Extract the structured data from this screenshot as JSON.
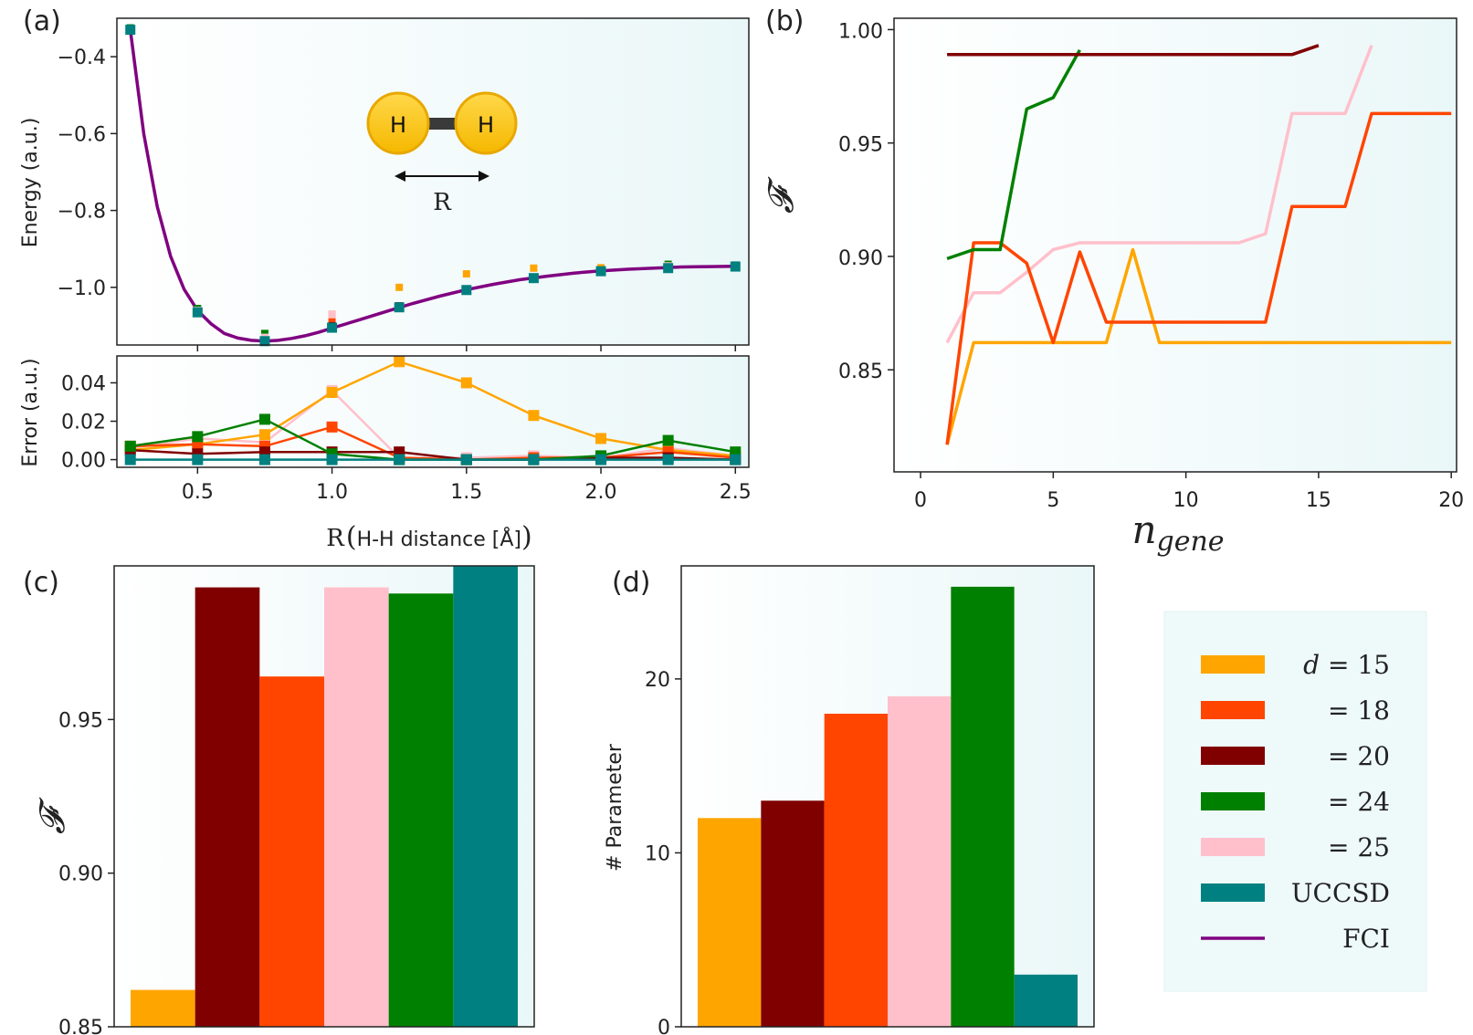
{
  "colors": {
    "d15": "#FFA500",
    "d18": "#FF4500",
    "d20": "#800000",
    "d24": "#008000",
    "d25": "#FFC0CB",
    "uccsd": "#008080",
    "fci": "#800080",
    "panel_bg": "#EEF9FA"
  },
  "panel_labels": {
    "a": "(a)",
    "b": "(b)",
    "c": "(c)",
    "d": "(d)"
  },
  "molecule": {
    "atom1": "H",
    "atom2": "H",
    "bond_label": "R"
  },
  "chart_data": [
    {
      "id": "a-energy",
      "type": "line",
      "ylabel": "Energy (a.u.)",
      "ylim": [
        -1.15,
        -0.3
      ],
      "xlim": [
        0.2,
        2.55
      ],
      "yticks": [
        -0.4,
        -0.6,
        -0.8,
        -1.0
      ],
      "ytick_labels": [
        "−0.4",
        "−0.6",
        "−0.8",
        "−1.0"
      ],
      "fci_series": {
        "name": "FCI",
        "x": [
          0.25,
          0.3,
          0.35,
          0.4,
          0.45,
          0.5,
          0.55,
          0.6,
          0.65,
          0.7,
          0.75,
          0.8,
          0.85,
          0.9,
          0.95,
          1.0,
          1.1,
          1.2,
          1.3,
          1.4,
          1.5,
          1.6,
          1.7,
          1.8,
          1.9,
          2.0,
          2.1,
          2.2,
          2.3,
          2.4,
          2.5
        ],
        "y": [
          -0.33,
          -0.6,
          -0.79,
          -0.92,
          -1.005,
          -1.06,
          -1.095,
          -1.12,
          -1.132,
          -1.138,
          -1.14,
          -1.138,
          -1.133,
          -1.126,
          -1.117,
          -1.106,
          -1.085,
          -1.063,
          -1.042,
          -1.023,
          -1.006,
          -0.992,
          -0.98,
          -0.971,
          -0.963,
          -0.957,
          -0.953,
          -0.95,
          -0.947,
          -0.946,
          -0.945
        ]
      },
      "markers": {
        "x": [
          0.25,
          0.5,
          0.75,
          1.0,
          1.25,
          1.5,
          1.75,
          2.0,
          2.25,
          2.5
        ],
        "series": [
          {
            "name": "d=15",
            "y": [
              -0.33,
              -1.06,
              -1.14,
              -1.07,
              -1.0,
              -0.965,
              -0.95,
              -0.949,
              -0.945,
              -0.944
            ]
          },
          {
            "name": "d=18",
            "y": [
              -0.33,
              -1.06,
              -1.14,
              -1.09,
              -1.05,
              -1.005,
              -0.975,
              -0.958,
              -0.948,
              -0.944
            ]
          },
          {
            "name": "d=20",
            "y": [
              -0.33,
              -1.065,
              -1.14,
              -1.1,
              -1.048,
              -1.005,
              -0.975,
              -0.957,
              -0.947,
              -0.945
            ]
          },
          {
            "name": "d=24",
            "y": [
              -0.325,
              -1.055,
              -1.12,
              -1.105,
              -1.052,
              -1.005,
              -0.975,
              -0.955,
              -0.94,
              -0.942
            ]
          },
          {
            "name": "d=25",
            "y": [
              -0.33,
              -1.06,
              -1.13,
              -1.07,
              -1.05,
              -1.005,
              -0.973,
              -0.957,
              -0.944,
              -0.945
            ]
          },
          {
            "name": "UCCSD",
            "y": [
              -0.33,
              -1.065,
              -1.14,
              -1.105,
              -1.052,
              -1.007,
              -0.976,
              -0.958,
              -0.95,
              -0.946
            ]
          }
        ]
      }
    },
    {
      "id": "a-error",
      "type": "line",
      "ylabel": "Error (a.u.)",
      "xlabel_prefix": "R",
      "xlabel_text": "H-H distance [Å]",
      "ylim": [
        -0.004,
        0.054
      ],
      "xlim": [
        0.2,
        2.55
      ],
      "xticks": [
        0.5,
        1.0,
        1.5,
        2.0,
        2.5
      ],
      "xtick_labels": [
        "0.5",
        "1.0",
        "1.5",
        "2.0",
        "2.5"
      ],
      "yticks": [
        0.0,
        0.02,
        0.04
      ],
      "ytick_labels": [
        "0.00",
        "0.02",
        "0.04"
      ],
      "x": [
        0.25,
        0.5,
        0.75,
        1.0,
        1.25,
        1.5,
        1.75,
        2.0,
        2.25,
        2.5
      ],
      "series": [
        {
          "name": "d=25",
          "values": [
            0.006,
            0.011,
            0.009,
            0.036,
            0.001,
            0.001,
            0.002,
            0.001,
            0.006,
            0.002
          ]
        },
        {
          "name": "d=15",
          "values": [
            0.005,
            0.008,
            0.013,
            0.035,
            0.051,
            0.04,
            0.023,
            0.011,
            0.005,
            0.002
          ]
        },
        {
          "name": "d=18",
          "values": [
            0.007,
            0.008,
            0.007,
            0.017,
            0.001,
            0.0,
            0.001,
            0.001,
            0.004,
            0.001
          ]
        },
        {
          "name": "d=20",
          "values": [
            0.005,
            0.003,
            0.004,
            0.004,
            0.004,
            0.0,
            0.0,
            0.001,
            0.001,
            0.0
          ]
        },
        {
          "name": "d=24",
          "values": [
            0.007,
            0.012,
            0.021,
            0.003,
            0.0,
            0.0,
            0.0,
            0.002,
            0.01,
            0.004
          ]
        },
        {
          "name": "UCCSD",
          "values": [
            0.0,
            0.0,
            0.0,
            0.0,
            0.0,
            0.0,
            0.0,
            0.0,
            0.0,
            0.0
          ]
        }
      ]
    },
    {
      "id": "b",
      "type": "line",
      "ylabel": "𝓕",
      "xlabel": "n",
      "xlabel_sub": "gene",
      "xlim": [
        -1,
        20.2
      ],
      "ylim": [
        0.805,
        1.005
      ],
      "xticks": [
        0,
        5,
        10,
        15,
        20
      ],
      "xtick_labels": [
        "0",
        "5",
        "10",
        "15",
        "20"
      ],
      "yticks": [
        0.85,
        0.9,
        0.95,
        1.0
      ],
      "ytick_labels": [
        "0.85",
        "0.90",
        "0.95",
        "1.00"
      ],
      "series": [
        {
          "name": "d=15",
          "x": [
            1,
            2,
            3,
            4,
            5,
            6,
            7,
            8,
            9,
            10,
            11,
            12,
            13,
            14,
            15,
            16,
            17,
            18,
            19,
            20
          ],
          "values": [
            0.817,
            0.862,
            0.862,
            0.862,
            0.862,
            0.862,
            0.862,
            0.903,
            0.862,
            0.862,
            0.862,
            0.862,
            0.862,
            0.862,
            0.862,
            0.862,
            0.862,
            0.862,
            0.862,
            0.862
          ]
        },
        {
          "name": "d=25",
          "x": [
            1,
            2,
            3,
            4,
            5,
            6,
            7,
            8,
            9,
            10,
            11,
            12,
            13,
            14,
            15,
            16,
            17
          ],
          "values": [
            0.862,
            0.884,
            0.884,
            0.893,
            0.903,
            0.906,
            0.906,
            0.906,
            0.906,
            0.906,
            0.906,
            0.906,
            0.91,
            0.963,
            0.963,
            0.963,
            0.993
          ]
        },
        {
          "name": "d=18",
          "x": [
            1,
            2,
            3,
            4,
            5,
            6,
            7,
            8,
            9,
            10,
            11,
            12,
            13,
            14,
            15,
            16,
            17,
            18,
            19,
            20
          ],
          "values": [
            0.817,
            0.906,
            0.906,
            0.897,
            0.862,
            0.902,
            0.871,
            0.871,
            0.871,
            0.871,
            0.871,
            0.871,
            0.871,
            0.922,
            0.922,
            0.922,
            0.963,
            0.963,
            0.963,
            0.963
          ]
        },
        {
          "name": "d=24",
          "x": [
            1,
            2,
            3,
            4,
            5,
            6
          ],
          "values": [
            0.899,
            0.903,
            0.903,
            0.965,
            0.97,
            0.991
          ]
        },
        {
          "name": "d=20",
          "x": [
            1,
            2,
            3,
            4,
            5,
            6,
            7,
            8,
            9,
            10,
            11,
            12,
            13,
            14,
            15
          ],
          "values": [
            0.989,
            0.989,
            0.989,
            0.989,
            0.989,
            0.989,
            0.989,
            0.989,
            0.989,
            0.989,
            0.989,
            0.989,
            0.989,
            0.989,
            0.993
          ]
        }
      ]
    },
    {
      "id": "c",
      "type": "bar",
      "ylabel": "𝓕",
      "ylim": [
        0.85,
        1.0
      ],
      "yticks": [
        0.85,
        0.9,
        0.95
      ],
      "ytick_labels": [
        "0.85",
        "0.90",
        "0.95"
      ],
      "categories": [
        "d=15",
        "d=20",
        "d=18",
        "d=25",
        "d=24",
        "UCCSD"
      ],
      "values": [
        0.862,
        0.993,
        0.964,
        0.993,
        0.991,
        1.0
      ]
    },
    {
      "id": "d",
      "type": "bar",
      "ylabel": "# Parameter",
      "ylim": [
        0,
        26.5
      ],
      "yticks": [
        0,
        10,
        20
      ],
      "ytick_labels": [
        "0",
        "10",
        "20"
      ],
      "categories": [
        "d=15",
        "d=20",
        "d=18",
        "d=25",
        "d=24",
        "UCCSD"
      ],
      "values": [
        12,
        13,
        18,
        19,
        25.3,
        3
      ]
    }
  ],
  "legend": {
    "items": [
      {
        "key": "d15",
        "prefix": "d",
        "text": "= 15"
      },
      {
        "key": "d18",
        "prefix": "",
        "text": "= 18"
      },
      {
        "key": "d20",
        "prefix": "",
        "text": "= 20"
      },
      {
        "key": "d24",
        "prefix": "",
        "text": "= 24"
      },
      {
        "key": "d25",
        "prefix": "",
        "text": "= 25"
      },
      {
        "key": "uccsd",
        "prefix": "",
        "text": "UCCSD"
      },
      {
        "key": "fci",
        "prefix": "",
        "text": "FCI"
      }
    ]
  }
}
